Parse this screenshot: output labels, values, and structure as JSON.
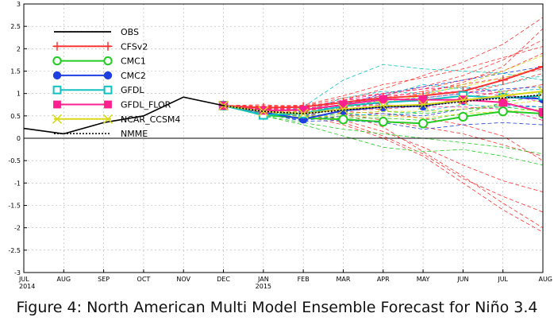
{
  "chart_data": {
    "type": "line",
    "title": "",
    "xlabel": "",
    "ylabel": "",
    "ylim": [
      -3,
      3
    ],
    "y_ticks": [
      -3,
      -2.5,
      -2,
      -1.5,
      -1,
      -0.5,
      0,
      0.5,
      1,
      1.5,
      2,
      2.5,
      3
    ],
    "y_tick_labels": [
      "-3",
      "-2.5",
      "-2",
      "-1.5",
      "-1",
      "-0.5",
      "0",
      "0.5",
      "1",
      "1.5",
      "2",
      "2.5",
      "3"
    ],
    "x_categories": [
      "JUL",
      "AUG",
      "SEP",
      "OCT",
      "NOV",
      "DEC",
      "JAN",
      "FEB",
      "MAR",
      "APR",
      "MAY",
      "JUN",
      "JUL",
      "AUG"
    ],
    "x_year_labels": [
      {
        "index": 0,
        "label": "2014"
      },
      {
        "index": 6,
        "label": "2015"
      }
    ],
    "grid": true,
    "legend_position": "top-left",
    "observation": {
      "name": "OBS",
      "color": "#000000",
      "values": [
        0.22,
        0.1,
        0.35,
        0.5,
        0.92,
        0.73
      ]
    },
    "series": [
      {
        "name": "CFSv2",
        "color": "#ff3333",
        "marker": "plus",
        "start_index": 5,
        "values": [
          0.73,
          0.68,
          0.7,
          0.8,
          0.9,
          0.95,
          1.05,
          1.3,
          1.6
        ]
      },
      {
        "name": "CMC1",
        "color": "#22cc22",
        "marker": "open-circle",
        "start_index": 5,
        "values": [
          0.73,
          0.52,
          0.45,
          0.42,
          0.37,
          0.33,
          0.48,
          0.6,
          0.55
        ]
      },
      {
        "name": "CMC2",
        "color": "#1f3fe0",
        "marker": "filled-circle",
        "start_index": 5,
        "values": [
          0.73,
          0.58,
          0.43,
          0.62,
          0.7,
          0.72,
          0.85,
          0.92,
          0.88
        ]
      },
      {
        "name": "GFDL",
        "color": "#11c0c0",
        "marker": "open-square",
        "start_index": 5,
        "values": [
          0.73,
          0.52,
          0.55,
          0.72,
          0.8,
          0.85,
          0.95,
          0.9,
          0.95
        ]
      },
      {
        "name": "GFDL_FLOR",
        "color": "#ff1f8f",
        "marker": "filled-square",
        "start_index": 5,
        "values": [
          0.73,
          0.62,
          0.63,
          0.75,
          0.87,
          0.86,
          0.86,
          0.8,
          0.58
        ]
      },
      {
        "name": "NCAR_CCSM4",
        "color": "#d8d81a",
        "marker": "x",
        "start_index": 5,
        "values": [
          0.73,
          0.6,
          0.55,
          0.65,
          0.72,
          0.75,
          0.85,
          0.95,
          1.05
        ]
      },
      {
        "name": "NMME",
        "color": "#000000",
        "marker": "dotted",
        "start_index": 5,
        "values": [
          0.73,
          0.6,
          0.55,
          0.63,
          0.7,
          0.72,
          0.82,
          0.9,
          0.97
        ]
      }
    ],
    "ensemble_members": [
      {
        "color": "#ff3333",
        "values": [
          0.73,
          0.72,
          0.68,
          0.85,
          1.1,
          1.4,
          1.7,
          2.1,
          2.7
        ]
      },
      {
        "color": "#ff3333",
        "values": [
          0.73,
          0.66,
          0.64,
          0.8,
          0.95,
          1.15,
          1.4,
          1.75,
          2.2
        ]
      },
      {
        "color": "#ff3333",
        "values": [
          0.73,
          0.7,
          0.72,
          0.9,
          1.0,
          1.1,
          1.3,
          1.5,
          1.9
        ]
      },
      {
        "color": "#ff3333",
        "values": [
          0.73,
          0.75,
          0.7,
          0.6,
          0.55,
          0.45,
          0.3,
          0.05,
          -0.5
        ]
      },
      {
        "color": "#ff3333",
        "values": [
          0.73,
          0.64,
          0.62,
          0.7,
          0.78,
          0.9,
          1.0,
          1.2,
          1.45
        ]
      },
      {
        "color": "#ff3333",
        "values": [
          0.73,
          0.68,
          0.6,
          0.4,
          0.15,
          -0.2,
          -0.6,
          -0.95,
          -1.2
        ]
      },
      {
        "color": "#ff3333",
        "values": [
          0.73,
          0.72,
          0.74,
          0.95,
          1.2,
          1.35,
          1.55,
          1.8,
          2.05
        ]
      },
      {
        "color": "#ff3333",
        "values": [
          0.73,
          0.62,
          0.55,
          0.35,
          0.05,
          -0.35,
          -0.9,
          -1.3,
          -1.65
        ]
      },
      {
        "color": "#ff3333",
        "values": [
          0.73,
          0.66,
          0.7,
          0.85,
          0.9,
          1.05,
          1.2,
          1.35,
          1.55
        ]
      },
      {
        "color": "#ff3333",
        "values": [
          0.73,
          0.7,
          0.66,
          0.55,
          0.4,
          0.25,
          0.1,
          -0.15,
          -0.4
        ]
      },
      {
        "color": "#ff3333",
        "values": [
          0.73,
          0.69,
          0.73,
          0.8,
          0.85,
          1.0,
          1.25,
          1.6,
          2.45
        ]
      },
      {
        "color": "#ff3333",
        "values": [
          0.73,
          0.6,
          0.5,
          0.3,
          0.0,
          -0.4,
          -1.0,
          -1.6,
          -2.1
        ]
      },
      {
        "color": "#ff3333",
        "values": [
          0.73,
          0.64,
          0.68,
          0.62,
          0.65,
          0.72,
          0.9,
          1.05,
          1.2
        ]
      },
      {
        "color": "#ff3333",
        "values": [
          0.73,
          0.7,
          0.68,
          0.55,
          0.25,
          -0.3,
          -0.85,
          -1.45,
          -2.0
        ]
      },
      {
        "color": "#22cc22",
        "values": [
          0.73,
          0.5,
          0.35,
          0.2,
          0.1,
          0.0,
          -0.1,
          -0.2,
          -0.35
        ]
      },
      {
        "color": "#22cc22",
        "values": [
          0.73,
          0.55,
          0.5,
          0.55,
          0.6,
          0.55,
          0.65,
          0.7,
          0.6
        ]
      },
      {
        "color": "#22cc22",
        "values": [
          0.73,
          0.5,
          0.3,
          0.05,
          -0.2,
          -0.3,
          -0.25,
          -0.4,
          -0.6
        ]
      },
      {
        "color": "#22cc22",
        "values": [
          0.73,
          0.54,
          0.5,
          0.45,
          0.45,
          0.4,
          0.55,
          0.8,
          0.95
        ]
      },
      {
        "color": "#1f3fe0",
        "values": [
          0.73,
          0.6,
          0.48,
          0.7,
          0.85,
          0.9,
          1.0,
          1.1,
          1.15
        ]
      },
      {
        "color": "#1f3fe0",
        "values": [
          0.73,
          0.56,
          0.4,
          0.5,
          0.55,
          0.5,
          0.65,
          0.75,
          0.7
        ]
      },
      {
        "color": "#1f3fe0",
        "values": [
          0.73,
          0.6,
          0.5,
          0.75,
          1.0,
          1.15,
          1.3,
          1.45,
          1.6
        ]
      },
      {
        "color": "#1f3fe0",
        "values": [
          0.73,
          0.55,
          0.38,
          0.4,
          0.35,
          0.2,
          0.3,
          0.35,
          0.3
        ]
      },
      {
        "color": "#11c0c0",
        "values": [
          0.73,
          0.5,
          0.7,
          1.3,
          1.65,
          1.55,
          1.5,
          1.45,
          1.3
        ]
      },
      {
        "color": "#11c0c0",
        "values": [
          0.73,
          0.52,
          0.6,
          0.9,
          1.05,
          1.0,
          1.15,
          1.05,
          1.1
        ]
      },
      {
        "color": "#11c0c0",
        "values": [
          0.73,
          0.5,
          0.45,
          0.55,
          0.5,
          0.6,
          0.75,
          0.7,
          0.7
        ]
      },
      {
        "color": "#11c0c0",
        "values": [
          0.73,
          0.54,
          0.58,
          0.75,
          0.95,
          1.2,
          1.1,
          1.2,
          1.4
        ]
      },
      {
        "color": "#ff1f8f",
        "values": [
          0.73,
          0.63,
          0.65,
          0.8,
          0.95,
          1.0,
          1.05,
          0.95,
          0.9
        ]
      },
      {
        "color": "#ff1f8f",
        "values": [
          0.73,
          0.6,
          0.6,
          0.7,
          0.75,
          0.7,
          0.7,
          0.65,
          0.4
        ]
      },
      {
        "color": "#ff1f8f",
        "values": [
          0.73,
          0.65,
          0.68,
          0.85,
          1.0,
          1.1,
          1.15,
          1.0,
          0.8
        ]
      },
      {
        "color": "#d8d81a",
        "values": [
          0.73,
          0.62,
          0.6,
          0.7,
          0.8,
          0.95,
          1.2,
          1.5,
          1.85
        ]
      },
      {
        "color": "#d8d81a",
        "values": [
          0.73,
          0.58,
          0.5,
          0.55,
          0.6,
          0.6,
          0.65,
          0.75,
          0.85
        ]
      },
      {
        "color": "#d8d81a",
        "values": [
          0.73,
          0.6,
          0.58,
          0.68,
          0.85,
          1.0,
          1.15,
          1.35,
          1.6
        ]
      },
      {
        "color": "#d8d81a",
        "values": [
          0.73,
          0.56,
          0.48,
          0.5,
          0.5,
          0.45,
          0.55,
          0.6,
          0.65
        ]
      }
    ]
  },
  "caption": "Figure 4: North American Multi Model Ensemble Forecast for Niño 3.4"
}
